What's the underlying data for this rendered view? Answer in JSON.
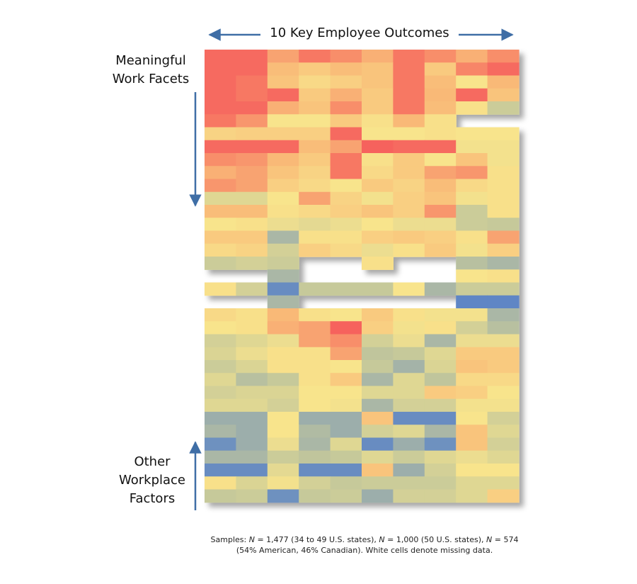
{
  "title": "10 Key Employee Outcomes",
  "labels": {
    "meaningful": [
      "Meaningful",
      "Work Facets"
    ],
    "other": [
      "Other",
      "Workplace",
      "Factors"
    ]
  },
  "caption": {
    "samples_label": "Samples: ",
    "n1_value": "= 1,477 (34 to 49 U.S. states), ",
    "n2_value": "= 1,000 (50 U.S. states), ",
    "n3_value": "= 574 (54% American, 46% Canadian). White cells denote missing data.",
    "n_symbol": "N"
  },
  "colors": {
    "arrow": "#3f6ea6",
    "scale": [
      "#4e7ccc",
      "#8ea5b1",
      "#c6c99a",
      "#f8e48c",
      "#f9b977",
      "#f6625d"
    ],
    "missing": "#ffffff"
  },
  "chart_data": {
    "type": "heatmap",
    "columns": 10,
    "rows": 36,
    "value_range": [
      0,
      1
    ],
    "missing_value": null,
    "values": [
      [
        0.98,
        0.98,
        0.85,
        0.95,
        0.9,
        0.82,
        0.95,
        0.9,
        0.82,
        0.9
      ],
      [
        0.98,
        0.98,
        0.78,
        0.72,
        0.78,
        0.75,
        0.95,
        0.72,
        0.92,
        0.98
      ],
      [
        0.98,
        0.95,
        0.75,
        0.65,
        0.7,
        0.75,
        0.95,
        0.78,
        0.6,
        0.8
      ],
      [
        0.98,
        0.95,
        0.98,
        0.72,
        0.82,
        0.72,
        0.95,
        0.8,
        0.98,
        0.75
      ],
      [
        0.98,
        0.98,
        0.82,
        0.75,
        0.9,
        0.72,
        0.95,
        0.78,
        0.62,
        0.42
      ],
      [
        0.95,
        0.88,
        0.6,
        0.6,
        0.72,
        0.62,
        0.8,
        0.62,
        null,
        null
      ],
      [
        0.68,
        0.7,
        0.7,
        0.7,
        0.98,
        0.6,
        0.6,
        0.62,
        0.6,
        0.6
      ],
      [
        0.98,
        0.98,
        0.98,
        0.78,
        0.85,
        1.0,
        0.98,
        0.98,
        0.58,
        0.58
      ],
      [
        0.9,
        0.88,
        0.8,
        0.72,
        0.95,
        0.62,
        0.72,
        0.6,
        0.75,
        0.58
      ],
      [
        0.82,
        0.85,
        0.75,
        0.68,
        0.95,
        0.65,
        0.72,
        0.85,
        0.88,
        0.62
      ],
      [
        0.88,
        0.85,
        0.7,
        0.65,
        0.6,
        0.72,
        0.68,
        0.78,
        0.65,
        0.62
      ],
      [
        0.5,
        0.5,
        0.6,
        0.85,
        0.68,
        0.58,
        0.7,
        0.75,
        0.58,
        0.62
      ],
      [
        0.78,
        0.78,
        0.62,
        0.65,
        0.7,
        0.75,
        0.7,
        0.88,
        0.42,
        0.62
      ],
      [
        0.6,
        0.62,
        0.55,
        0.52,
        0.55,
        0.6,
        0.55,
        0.55,
        0.42,
        0.4
      ],
      [
        0.72,
        0.72,
        0.3,
        0.62,
        0.62,
        0.7,
        0.72,
        0.7,
        0.62,
        0.85
      ],
      [
        0.65,
        0.68,
        0.45,
        0.7,
        0.65,
        0.55,
        0.62,
        0.72,
        0.58,
        0.7
      ],
      [
        0.42,
        0.45,
        0.42,
        null,
        null,
        0.62,
        null,
        null,
        0.35,
        0.3
      ],
      [
        null,
        null,
        0.3,
        null,
        null,
        null,
        null,
        null,
        0.6,
        0.62
      ],
      [
        0.62,
        0.45,
        0.08,
        0.4,
        0.4,
        0.4,
        0.6,
        0.3,
        0.42,
        0.42
      ],
      [
        null,
        null,
        0.3,
        null,
        null,
        null,
        null,
        null,
        0.05,
        0.05
      ],
      [
        0.65,
        0.62,
        0.8,
        0.62,
        0.6,
        0.72,
        0.62,
        0.58,
        0.58,
        0.3
      ],
      [
        0.6,
        0.62,
        0.82,
        0.85,
        1.0,
        0.7,
        0.58,
        0.62,
        0.45,
        0.35
      ],
      [
        0.45,
        0.5,
        0.55,
        0.85,
        0.9,
        0.45,
        0.55,
        0.3,
        0.55,
        0.55
      ],
      [
        0.48,
        0.55,
        0.62,
        0.62,
        0.85,
        0.38,
        0.4,
        0.5,
        0.72,
        0.72
      ],
      [
        0.42,
        0.48,
        0.62,
        0.62,
        0.6,
        0.4,
        0.28,
        0.48,
        0.75,
        0.72
      ],
      [
        0.5,
        0.35,
        0.4,
        0.62,
        0.72,
        0.3,
        0.5,
        0.38,
        0.65,
        0.65
      ],
      [
        0.45,
        0.48,
        0.48,
        0.6,
        0.6,
        0.5,
        0.5,
        0.72,
        0.7,
        0.6
      ],
      [
        0.5,
        0.5,
        0.45,
        0.6,
        0.58,
        0.3,
        0.45,
        0.45,
        0.58,
        0.58
      ],
      [
        0.25,
        0.25,
        0.6,
        0.25,
        0.25,
        0.75,
        0.08,
        0.08,
        0.6,
        0.45
      ],
      [
        0.3,
        0.25,
        0.6,
        0.32,
        0.25,
        0.45,
        0.5,
        0.3,
        0.75,
        0.5
      ],
      [
        0.1,
        0.25,
        0.55,
        0.3,
        0.5,
        0.08,
        0.25,
        0.1,
        0.75,
        0.45
      ],
      [
        0.3,
        0.3,
        0.42,
        0.38,
        0.4,
        0.5,
        0.42,
        0.5,
        0.55,
        0.5
      ],
      [
        0.08,
        0.08,
        0.52,
        0.08,
        0.08,
        0.75,
        0.25,
        0.45,
        0.6,
        0.6
      ],
      [
        0.62,
        0.48,
        0.58,
        0.45,
        0.4,
        0.42,
        0.42,
        0.42,
        0.5,
        0.5
      ],
      [
        0.4,
        0.42,
        0.1,
        0.4,
        0.42,
        0.25,
        0.45,
        0.45,
        0.5,
        0.7
      ],
      [
        null,
        null,
        null,
        null,
        null,
        null,
        null,
        null,
        null,
        null
      ]
    ]
  }
}
